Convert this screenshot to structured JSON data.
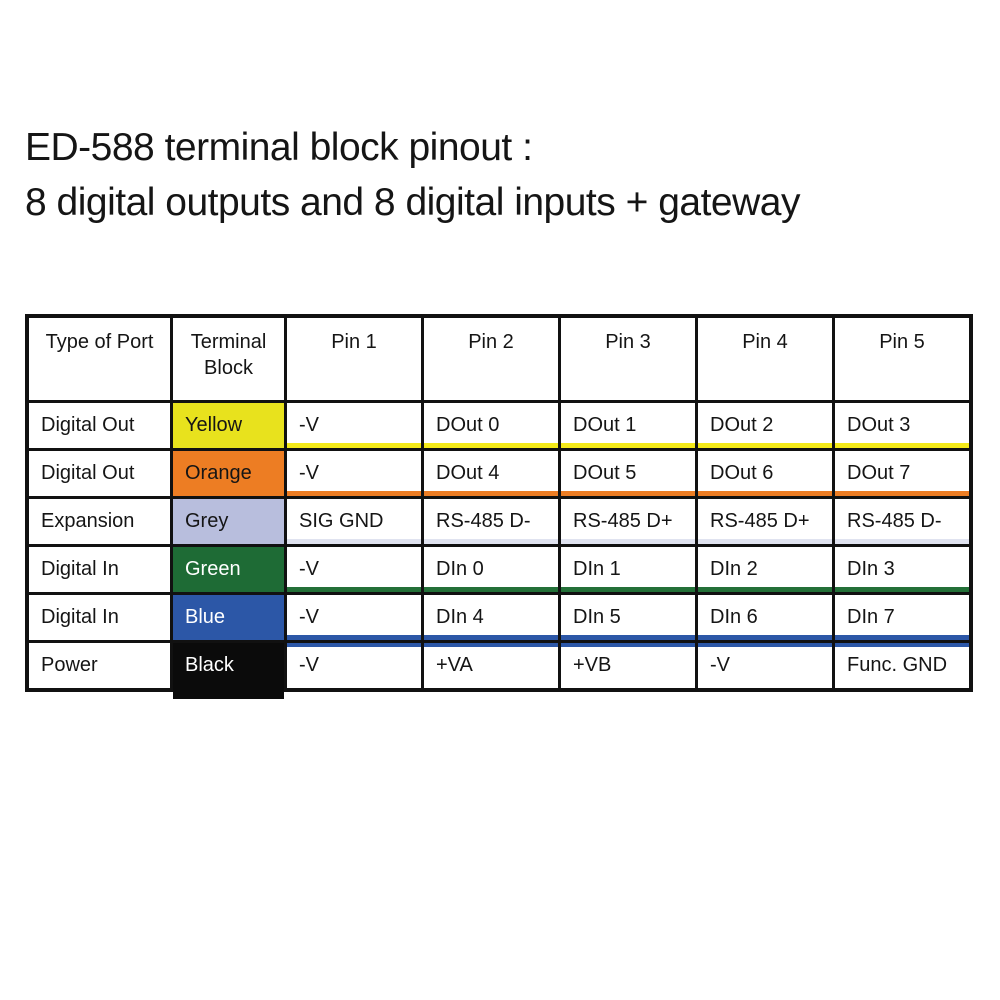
{
  "title": {
    "line1": "ED-588 terminal block pinout :",
    "line2": "8 digital outputs and 8 digital inputs + gateway"
  },
  "colors": {
    "grid_border": "#111111",
    "text_dark": "#151515",
    "text_light": "#ffffff"
  },
  "table": {
    "headers": [
      "Type of Port",
      "Terminal Block",
      "Pin 1",
      "Pin 2",
      "Pin 3",
      "Pin 4",
      "Pin 5"
    ],
    "rows": [
      {
        "type": "Digital Out",
        "block": "Yellow",
        "color": "#e8e21d",
        "text_color": "#151515",
        "stripe": "#f4ea1a",
        "pins": [
          "-V",
          "DOut 0",
          "DOut 1",
          "DOut 2",
          "DOut 3"
        ]
      },
      {
        "type": "Digital Out",
        "block": "Orange",
        "color": "#ed7d23",
        "text_color": "#151515",
        "stripe": "#ed7d23",
        "pins": [
          "-V",
          "DOut 4",
          "DOut 5",
          "DOut 6",
          "DOut 7"
        ]
      },
      {
        "type": "Expansion",
        "block": "Grey",
        "color": "#b8bedd",
        "text_color": "#151515",
        "stripe": "#e0e3f0",
        "pins": [
          "SIG GND",
          "RS-485 D-",
          "RS-485 D+",
          "RS-485 D+",
          "RS-485 D-"
        ]
      },
      {
        "type": "Digital In",
        "block": "Green",
        "color": "#1e6b35",
        "text_color": "#ffffff",
        "stripe": "#237038",
        "pins": [
          "-V",
          "DIn 0",
          "DIn 1",
          "DIn 2",
          "DIn 3"
        ]
      },
      {
        "type": "Digital In",
        "block": "Blue",
        "color": "#2c57a7",
        "text_color": "#ffffff",
        "stripe": "#2c57a7",
        "pins": [
          "-V",
          "DIn 4",
          "DIn 5",
          "DIn 6",
          "DIn 7"
        ]
      },
      {
        "type": "Power",
        "block": "Black",
        "color": "#0b0b0b",
        "text_color": "#ffffff",
        "stripe": null,
        "stripe_top": "#2c57a7",
        "bleed": true,
        "pins": [
          "-V",
          "+VA",
          "+VB",
          "-V",
          "Func. GND"
        ]
      }
    ]
  }
}
